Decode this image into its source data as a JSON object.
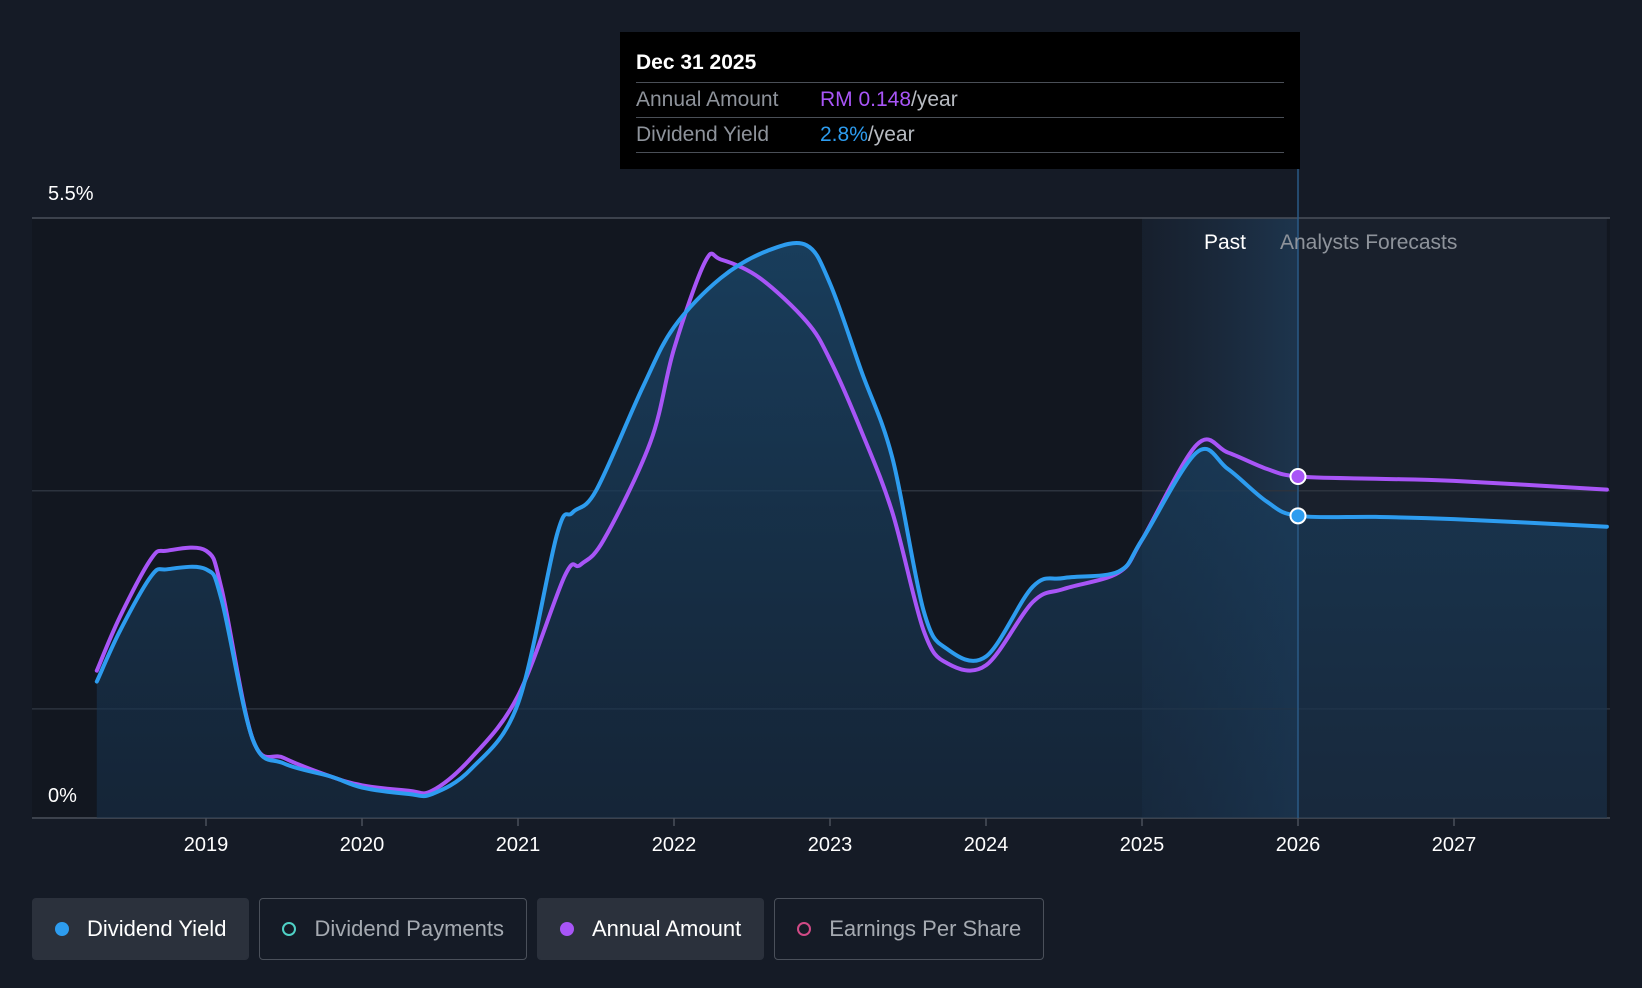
{
  "chart_data": {
    "type": "line",
    "y_axis": {
      "min": 0,
      "max": 5.5,
      "top_label": "5.5%",
      "bottom_label": "0%"
    },
    "x_axis": {
      "ticks": [
        "2019",
        "2020",
        "2021",
        "2022",
        "2023",
        "2024",
        "2025",
        "2026",
        "2027"
      ],
      "range": [
        2018.3,
        2027.98
      ]
    },
    "regions": {
      "past_label": "Past",
      "forecast_label": "Analysts Forecasts",
      "divider_x": 2026.0
    },
    "series": [
      {
        "name": "Dividend Yield",
        "color": "#2d9cef",
        "filled": true,
        "points": [
          [
            2018.3,
            1.25
          ],
          [
            2018.45,
            1.72
          ],
          [
            2018.65,
            2.22
          ],
          [
            2018.75,
            2.28
          ],
          [
            2019.0,
            2.28
          ],
          [
            2019.1,
            2.0
          ],
          [
            2019.3,
            0.72
          ],
          [
            2019.5,
            0.5
          ],
          [
            2019.8,
            0.38
          ],
          [
            2020.0,
            0.28
          ],
          [
            2020.3,
            0.22
          ],
          [
            2020.45,
            0.22
          ],
          [
            2020.7,
            0.45
          ],
          [
            2021.0,
            1.05
          ],
          [
            2021.25,
            2.6
          ],
          [
            2021.35,
            2.8
          ],
          [
            2021.5,
            3.0
          ],
          [
            2021.8,
            3.95
          ],
          [
            2022.0,
            4.5
          ],
          [
            2022.3,
            4.95
          ],
          [
            2022.6,
            5.2
          ],
          [
            2022.85,
            5.25
          ],
          [
            2023.0,
            4.9
          ],
          [
            2023.2,
            4.1
          ],
          [
            2023.4,
            3.3
          ],
          [
            2023.6,
            1.9
          ],
          [
            2023.75,
            1.55
          ],
          [
            2024.0,
            1.48
          ],
          [
            2024.3,
            2.12
          ],
          [
            2024.5,
            2.2
          ],
          [
            2024.85,
            2.26
          ],
          [
            2025.0,
            2.55
          ],
          [
            2025.35,
            3.35
          ],
          [
            2025.55,
            3.2
          ],
          [
            2025.8,
            2.9
          ],
          [
            2026.0,
            2.77
          ],
          [
            2026.5,
            2.76
          ],
          [
            2027.0,
            2.74
          ],
          [
            2027.98,
            2.67
          ]
        ]
      },
      {
        "name": "Annual Amount",
        "color": "#a855f7",
        "filled": false,
        "points": [
          [
            2018.3,
            1.35
          ],
          [
            2018.45,
            1.85
          ],
          [
            2018.65,
            2.38
          ],
          [
            2018.75,
            2.45
          ],
          [
            2019.0,
            2.45
          ],
          [
            2019.1,
            2.1
          ],
          [
            2019.3,
            0.72
          ],
          [
            2019.5,
            0.55
          ],
          [
            2019.8,
            0.38
          ],
          [
            2020.0,
            0.3
          ],
          [
            2020.3,
            0.25
          ],
          [
            2020.45,
            0.25
          ],
          [
            2020.7,
            0.55
          ],
          [
            2021.0,
            1.12
          ],
          [
            2021.3,
            2.22
          ],
          [
            2021.4,
            2.32
          ],
          [
            2021.55,
            2.55
          ],
          [
            2021.85,
            3.45
          ],
          [
            2022.0,
            4.3
          ],
          [
            2022.2,
            5.1
          ],
          [
            2022.3,
            5.12
          ],
          [
            2022.55,
            4.95
          ],
          [
            2022.85,
            4.55
          ],
          [
            2023.0,
            4.2
          ],
          [
            2023.2,
            3.55
          ],
          [
            2023.4,
            2.8
          ],
          [
            2023.6,
            1.72
          ],
          [
            2023.75,
            1.42
          ],
          [
            2024.0,
            1.4
          ],
          [
            2024.3,
            1.98
          ],
          [
            2024.5,
            2.1
          ],
          [
            2024.85,
            2.25
          ],
          [
            2025.0,
            2.55
          ],
          [
            2025.35,
            3.42
          ],
          [
            2025.55,
            3.35
          ],
          [
            2025.8,
            3.2
          ],
          [
            2026.0,
            3.13
          ],
          [
            2026.5,
            3.11
          ],
          [
            2027.0,
            3.09
          ],
          [
            2027.98,
            3.01
          ]
        ]
      }
    ],
    "highlight": {
      "x": 2026.0,
      "yield": 2.77,
      "amount": 3.13
    },
    "tooltip": {
      "date": "Dec 31 2025",
      "annual_amount_label": "Annual Amount",
      "annual_amount_value": "RM 0.148",
      "annual_amount_unit": "/year",
      "dividend_yield_label": "Dividend Yield",
      "dividend_yield_value": "2.8%",
      "dividend_yield_unit": "/year"
    }
  },
  "legend": [
    {
      "label": "Dividend Yield",
      "color": "#2d9cef",
      "active": true
    },
    {
      "label": "Dividend Payments",
      "color": "#4fd1c5",
      "active": false
    },
    {
      "label": "Annual Amount",
      "color": "#a855f7",
      "active": true
    },
    {
      "label": "Earnings Per Share",
      "color": "#d14a86",
      "active": false
    }
  ]
}
